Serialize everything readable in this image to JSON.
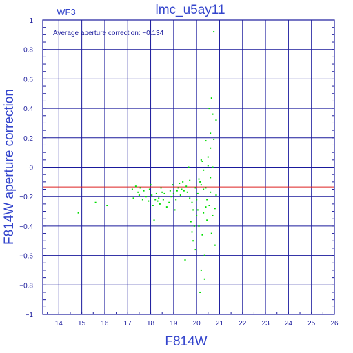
{
  "panel_label": "WF3",
  "chart_data": {
    "type": "scatter",
    "title": "lmc_u5ay11",
    "xlabel": "F814W",
    "ylabel": "F814W aperture correction",
    "annotation": "Average aperture correction: −0.134",
    "xlim": [
      13.3,
      26
    ],
    "ylim": [
      -1,
      1
    ],
    "xticks": [
      14,
      15,
      16,
      17,
      18,
      19,
      20,
      21,
      22,
      23,
      24,
      25,
      26
    ],
    "yticks": [
      -1,
      -0.8,
      -0.6,
      -0.4,
      -0.2,
      0,
      0.2,
      0.4,
      0.6,
      0.8,
      1
    ],
    "ytick_labels": [
      "−1",
      "−0.8",
      "−0.6",
      "−0.4",
      "−0.2",
      "0",
      "0.2",
      "0.4",
      "0.6",
      "0.8",
      "1"
    ],
    "grid": true,
    "reference_line": -0.134,
    "colors": {
      "frame": "#1a1a9c",
      "grid": "#1a1a9c",
      "points": "#00dd00",
      "reference": "#dd2222",
      "text": "#3344cc"
    },
    "points": [
      [
        14.85,
        -0.31
      ],
      [
        15.6,
        -0.24
      ],
      [
        16.1,
        -0.26
      ],
      [
        17.2,
        -0.15
      ],
      [
        17.25,
        -0.21
      ],
      [
        17.35,
        -0.13
      ],
      [
        17.45,
        -0.17
      ],
      [
        17.5,
        -0.19
      ],
      [
        17.55,
        -0.14
      ],
      [
        17.65,
        -0.22
      ],
      [
        17.7,
        -0.16
      ],
      [
        17.8,
        -0.2
      ],
      [
        17.9,
        -0.23
      ],
      [
        17.95,
        -0.15
      ],
      [
        18.0,
        -0.12
      ],
      [
        18.05,
        -0.19
      ],
      [
        18.1,
        -0.26
      ],
      [
        18.15,
        -0.36
      ],
      [
        18.2,
        -0.22
      ],
      [
        18.25,
        -0.18
      ],
      [
        18.3,
        -0.23
      ],
      [
        18.35,
        -0.21
      ],
      [
        18.4,
        -0.25
      ],
      [
        18.45,
        -0.14
      ],
      [
        18.5,
        -0.17
      ],
      [
        18.55,
        -0.22
      ],
      [
        18.6,
        -0.18
      ],
      [
        18.7,
        -0.27
      ],
      [
        18.8,
        -0.24
      ],
      [
        18.85,
        -0.16
      ],
      [
        18.9,
        -0.2
      ],
      [
        18.95,
        -0.12
      ],
      [
        19.0,
        -0.18
      ],
      [
        19.05,
        -0.29
      ],
      [
        19.1,
        -0.22
      ],
      [
        19.15,
        -0.16
      ],
      [
        19.2,
        -0.14
      ],
      [
        19.25,
        -0.11
      ],
      [
        19.3,
        -0.19
      ],
      [
        19.35,
        -0.15
      ],
      [
        19.4,
        -0.1
      ],
      [
        19.45,
        -0.16
      ],
      [
        19.5,
        -0.63
      ],
      [
        19.55,
        -0.13
      ],
      [
        19.6,
        -0.17
      ],
      [
        19.65,
        0.0
      ],
      [
        19.7,
        -0.21
      ],
      [
        19.7,
        -0.09
      ],
      [
        19.75,
        -0.37
      ],
      [
        19.8,
        -0.44
      ],
      [
        19.8,
        -0.24
      ],
      [
        19.85,
        -0.5
      ],
      [
        19.85,
        -0.29
      ],
      [
        19.9,
        -0.4
      ],
      [
        19.95,
        -0.14
      ],
      [
        19.95,
        -0.56
      ],
      [
        20.0,
        -0.33
      ],
      [
        20.0,
        -0.22
      ],
      [
        20.05,
        -0.18
      ],
      [
        20.05,
        -0.29
      ],
      [
        20.1,
        -0.08
      ],
      [
        20.1,
        -0.4
      ],
      [
        20.15,
        -0.1
      ],
      [
        20.15,
        -0.85
      ],
      [
        20.2,
        -0.7
      ],
      [
        20.2,
        0.05
      ],
      [
        20.25,
        0.04
      ],
      [
        20.25,
        -0.46
      ],
      [
        20.3,
        -0.15
      ],
      [
        20.3,
        -0.31
      ],
      [
        20.35,
        -0.76
      ],
      [
        20.35,
        -0.6
      ],
      [
        20.4,
        0.18
      ],
      [
        20.4,
        -0.14
      ],
      [
        20.45,
        -0.36
      ],
      [
        20.45,
        -0.22
      ],
      [
        20.5,
        0.07
      ],
      [
        20.5,
        0.01
      ],
      [
        20.55,
        0.4
      ],
      [
        20.55,
        -0.26
      ],
      [
        20.6,
        0.23
      ],
      [
        20.6,
        0.13
      ],
      [
        20.6,
        -0.17
      ],
      [
        20.65,
        0.47
      ],
      [
        20.65,
        -0.45
      ],
      [
        20.7,
        0.36
      ],
      [
        20.7,
        0.0
      ],
      [
        20.75,
        0.92
      ],
      [
        20.75,
        0.19
      ],
      [
        20.8,
        -0.28
      ],
      [
        20.8,
        -0.53
      ],
      [
        20.85,
        0.32
      ],
      [
        20.85,
        -0.19
      ],
      [
        20.6,
        -0.07
      ],
      [
        20.7,
        -0.33
      ],
      [
        20.3,
        -0.02
      ],
      [
        20.4,
        -0.27
      ],
      [
        20.2,
        -0.12
      ]
    ]
  }
}
